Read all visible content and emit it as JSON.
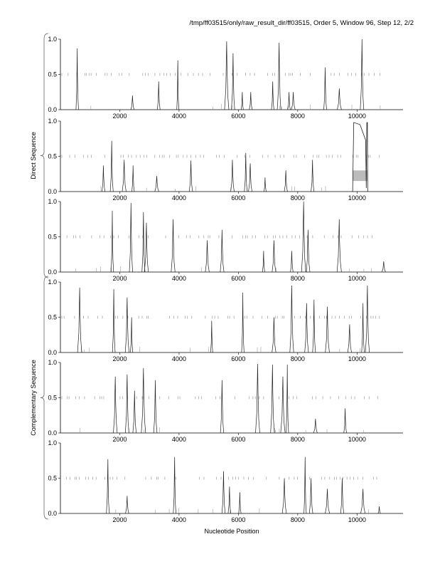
{
  "title": "/tmp/ff03515/only/raw_result_dir/ff03515, Order 5, Window 96, Step 12, 2/2",
  "chart_data": {
    "type": "line",
    "xlabel": "Nucleotide Position",
    "xlim": [
      0,
      11550
    ],
    "ylim": [
      0,
      1
    ],
    "xticks": [
      2000,
      4000,
      6000,
      8000,
      10000
    ],
    "yticks": [
      "0.0",
      "0.5",
      "1.0"
    ],
    "groups": [
      {
        "label": "Direct Sequence",
        "panels": [
          0,
          1,
          2
        ]
      },
      {
        "label": "Complementary Sequence",
        "panels": [
          3,
          4,
          5
        ]
      }
    ],
    "highlight": {
      "panel": 1,
      "x": [
        9850,
        10350
      ],
      "y": [
        0.15,
        0.3
      ],
      "color": "#bbbbbb"
    },
    "panels": [
      {
        "peaks": [
          [
            567,
            0.87
          ],
          [
            2430,
            0.2
          ],
          [
            3314,
            0.4
          ],
          [
            3958,
            0.7
          ],
          [
            5606,
            0.97
          ],
          [
            5821,
            0.8
          ],
          [
            6131,
            0.25
          ],
          [
            6418,
            0.25
          ],
          [
            7158,
            0.4
          ],
          [
            7373,
            0.95
          ],
          [
            7708,
            0.25
          ],
          [
            7851,
            0.25
          ],
          [
            8926,
            0.6
          ],
          [
            9404,
            0.3
          ],
          [
            10168,
            1.0
          ]
        ]
      },
      {
        "peaks": [
          [
            1450,
            0.37
          ],
          [
            1730,
            0.72
          ],
          [
            2150,
            0.45
          ],
          [
            2450,
            0.37
          ],
          [
            3250,
            0.22
          ],
          [
            4400,
            0.44
          ],
          [
            5800,
            0.45
          ],
          [
            6250,
            0.55
          ],
          [
            6400,
            0.4
          ],
          [
            6900,
            0.2
          ],
          [
            7600,
            0.3
          ],
          [
            8500,
            0.45
          ]
        ],
        "plateau": [
          9850,
          10350,
          0.98
        ]
      },
      {
        "peaks": [
          [
            1750,
            0.87
          ],
          [
            2380,
            0.98
          ],
          [
            2800,
            0.85
          ],
          [
            2900,
            0.7
          ],
          [
            3800,
            0.75
          ],
          [
            4950,
            0.45
          ],
          [
            5450,
            0.6
          ],
          [
            6850,
            0.3
          ],
          [
            7200,
            0.45
          ],
          [
            7800,
            0.3
          ],
          [
            8200,
            1.0
          ],
          [
            8350,
            0.6
          ],
          [
            9400,
            0.75
          ],
          [
            10900,
            0.15
          ]
        ]
      },
      {
        "peaks": [
          [
            650,
            0.92
          ],
          [
            1800,
            0.9
          ],
          [
            2250,
            0.78
          ],
          [
            2400,
            0.5
          ],
          [
            5100,
            0.45
          ],
          [
            6150,
            0.85
          ],
          [
            7200,
            0.5
          ],
          [
            7800,
            0.95
          ],
          [
            8300,
            0.7
          ],
          [
            8550,
            0.75
          ],
          [
            9000,
            0.65
          ],
          [
            9750,
            0.4
          ],
          [
            10200,
            0.7
          ],
          [
            10350,
            0.95
          ]
        ]
      },
      {
        "peaks": [
          [
            1850,
            0.8
          ],
          [
            2250,
            0.83
          ],
          [
            2500,
            0.6
          ],
          [
            2800,
            0.92
          ],
          [
            3200,
            0.75
          ],
          [
            5450,
            0.75
          ],
          [
            6650,
            0.98
          ],
          [
            7150,
            0.97
          ],
          [
            7500,
            0.8
          ],
          [
            7650,
            0.97
          ],
          [
            8600,
            0.2
          ],
          [
            9600,
            0.35
          ]
        ]
      },
      {
        "peaks": [
          [
            1600,
            0.77
          ],
          [
            2250,
            0.25
          ],
          [
            3850,
            0.8
          ],
          [
            5500,
            0.6
          ],
          [
            5700,
            0.38
          ],
          [
            6050,
            0.3
          ],
          [
            7550,
            0.5
          ],
          [
            8250,
            0.8
          ],
          [
            8450,
            0.5
          ],
          [
            9000,
            0.35
          ],
          [
            9500,
            0.5
          ],
          [
            10200,
            0.35
          ],
          [
            10750,
            0.1
          ]
        ]
      }
    ]
  }
}
